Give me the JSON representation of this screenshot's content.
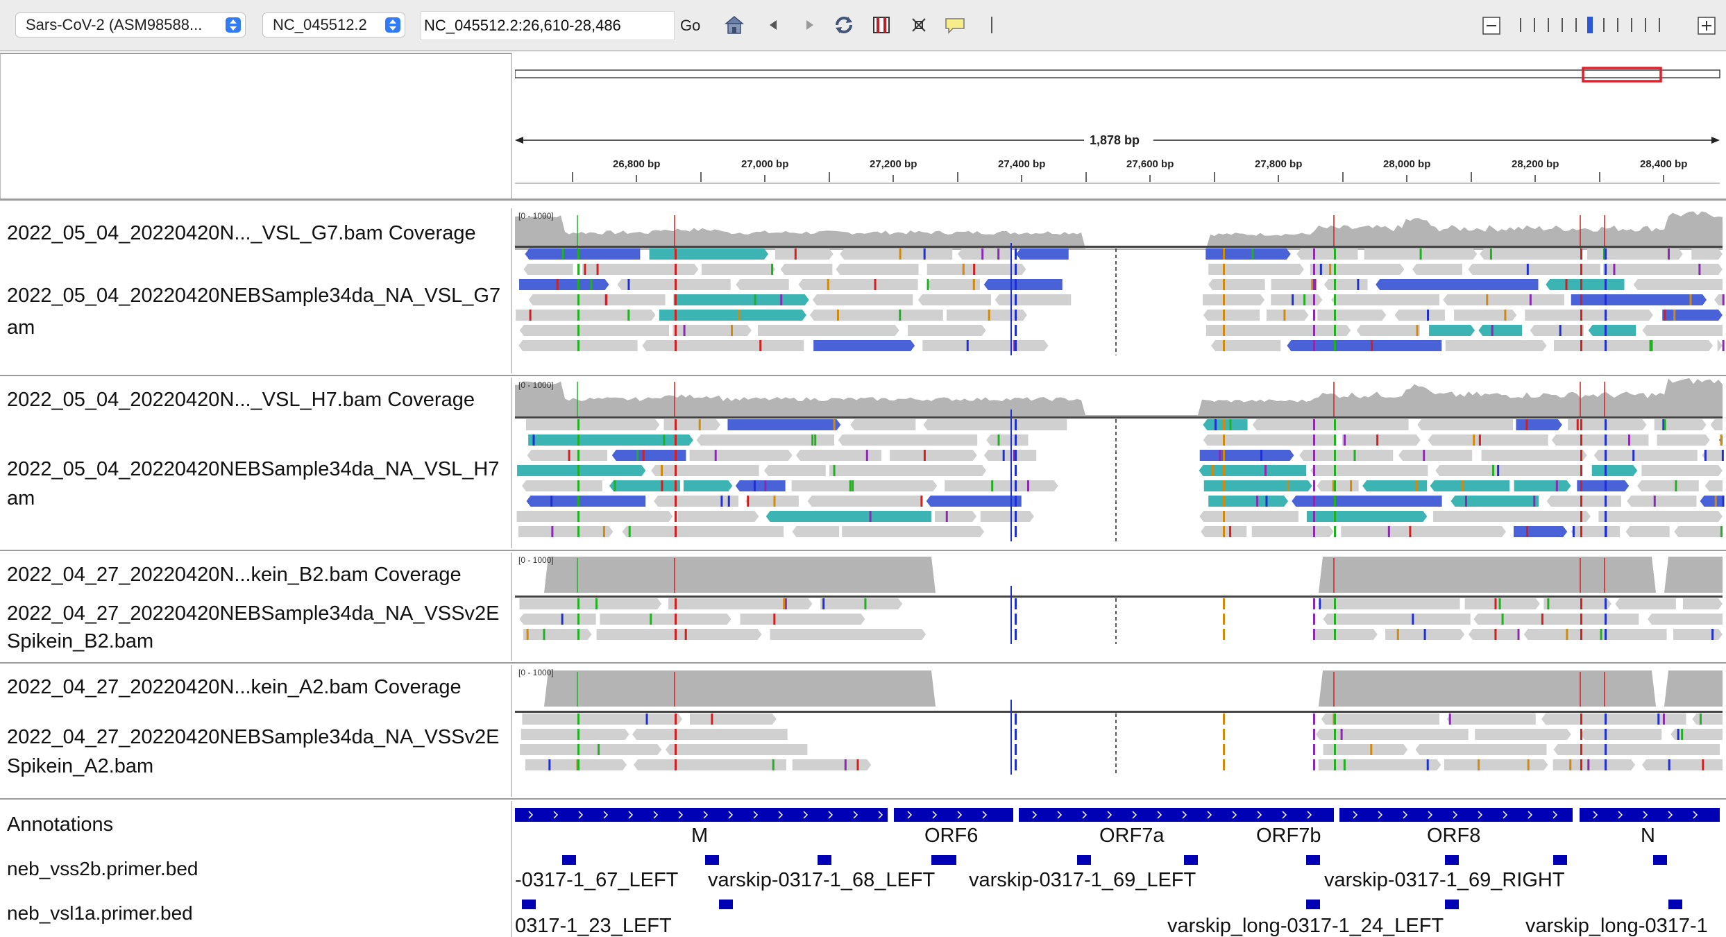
{
  "toolbar": {
    "genome": "Sars-CoV-2 (ASM98588...",
    "chromosome": "NC_045512.2",
    "locus": "NC_045512.2:26,610-28,486",
    "go_label": "Go"
  },
  "ruler": {
    "span_label": "1,878 bp",
    "ticks": [
      "26,800 bp",
      "27,000 bp",
      "27,200 bp",
      "27,400 bp",
      "27,600 bp",
      "27,800 bp",
      "28,000 bp",
      "28,200 bp",
      "28,400 bp"
    ]
  },
  "panels": [
    {
      "coverage_label": "2022_05_04_20220420N..._VSL_G7.bam Coverage",
      "alignment_label_line1": "2022_05_04_20220420NEBSample34da_NA_VSL_G7",
      "alignment_label_line2": "am",
      "range": "[0 - 1000]"
    },
    {
      "coverage_label": "2022_05_04_20220420N..._VSL_H7.bam Coverage",
      "alignment_label_line1": "2022_05_04_20220420NEBSample34da_NA_VSL_H7",
      "alignment_label_line2": "am",
      "range": "[0 - 1000]"
    },
    {
      "coverage_label": "2022_04_27_20220420N...kein_B2.bam Coverage",
      "alignment_label_line1": "2022_04_27_20220420NEBSample34da_NA_VSSv2E",
      "alignment_label_line2": "Spikein_B2.bam",
      "range": "[0 - 1000]"
    },
    {
      "coverage_label": "2022_04_27_20220420N...kein_A2.bam Coverage",
      "alignment_label_line1": "2022_04_27_20220420NEBSample34da_NA_VSSv2E",
      "alignment_label_line2": "Spikein_A2.bam",
      "range": "[0 - 1000]"
    }
  ],
  "annotations": {
    "labels": [
      "Annotations",
      "neb_vss2b.primer.bed",
      "neb_vsl1a.primer.bed"
    ],
    "genes": [
      "M",
      "ORF6",
      "ORF7a",
      "ORF7b",
      "ORF8",
      "N"
    ],
    "vss2b_primers": [
      "-0317-1_67_LEFT",
      "varskip-0317-1_68_LEFT",
      "varskip-0317-1_69_LEFT",
      "varskip-0317-1_69_RIGHT"
    ],
    "vsl1a_primers": [
      "0317-1_23_LEFT",
      "varskip_long-0317-1_24_LEFT",
      "varskip_long-0317-1"
    ]
  },
  "colors": {
    "coverage": "#b4b4b4",
    "read": "#d0d0d0",
    "gene": "#0000b4",
    "inversion_blue": "#4a62d8",
    "inversion_teal": "#3cb4b4"
  }
}
